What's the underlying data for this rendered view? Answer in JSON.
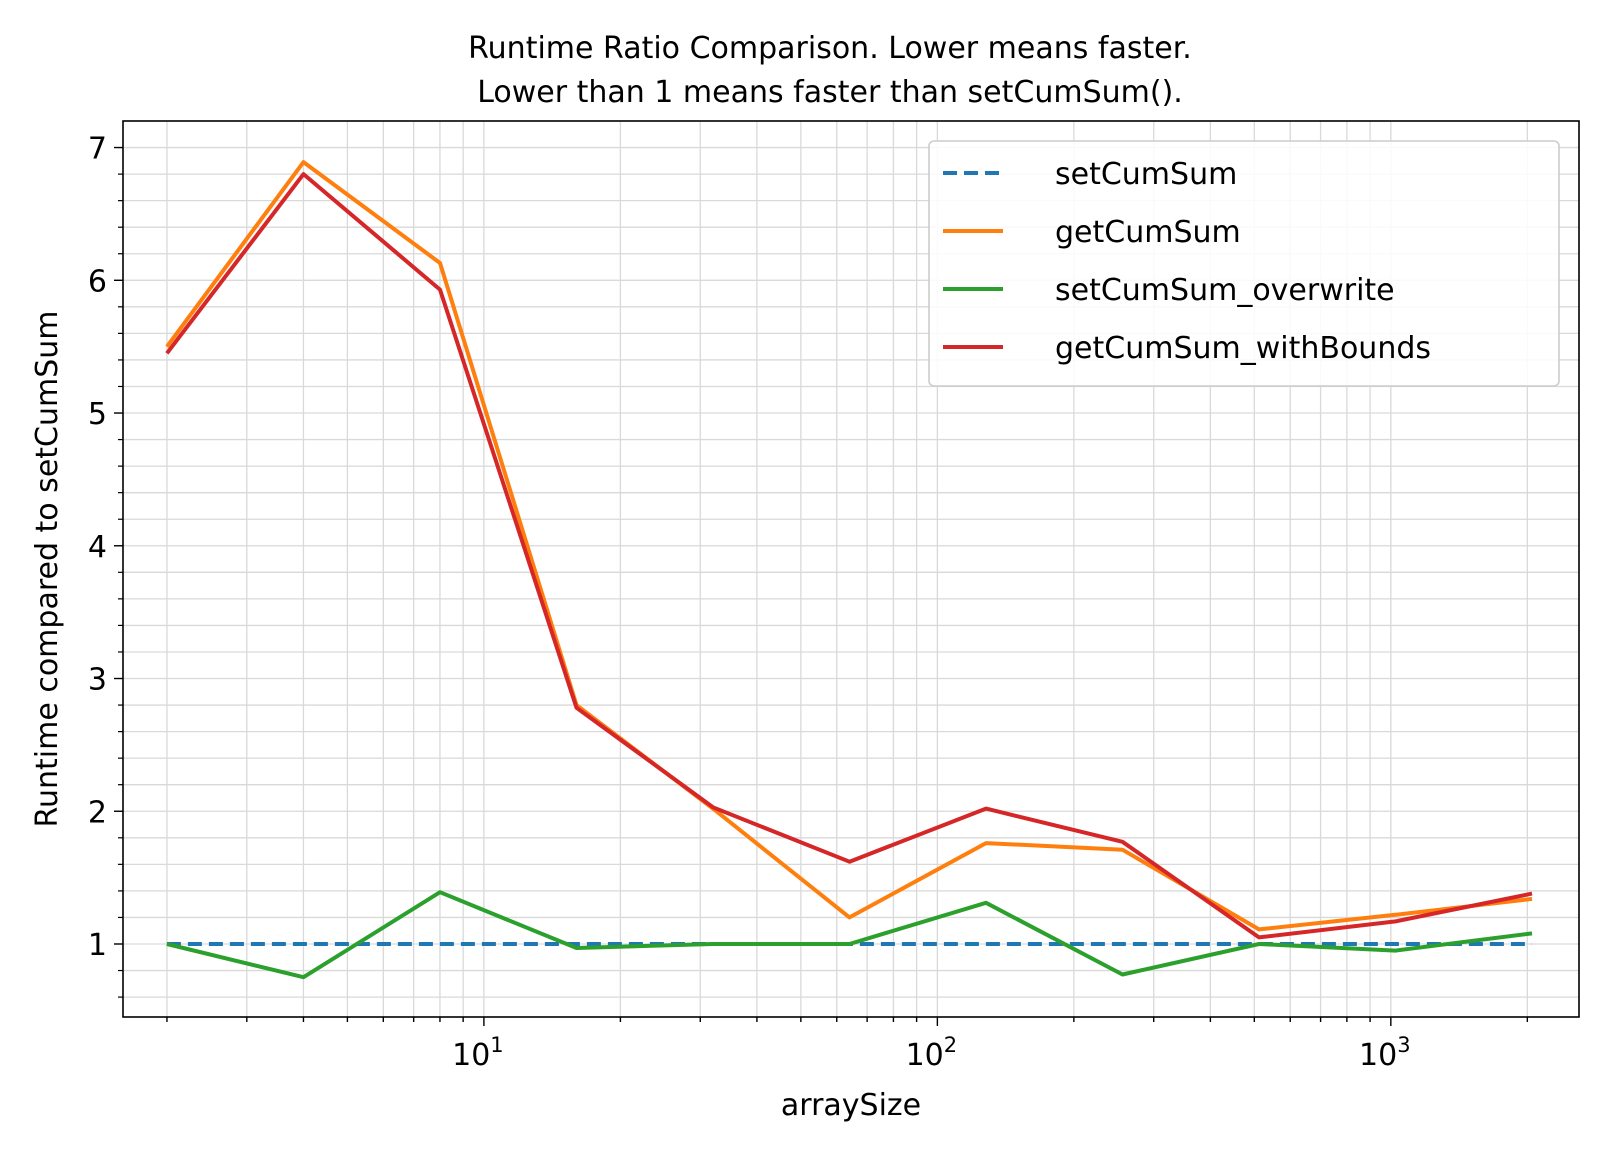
{
  "chart_data": {
    "type": "line",
    "title_line1": "Runtime Ratio Comparison. Lower means faster.",
    "title_line2": "Lower than 1 means faster than setCumSum().",
    "xlabel": "arraySize",
    "ylabel": "Runtime compared to setCumSum",
    "x_scale": "log",
    "xlim": [
      1.6,
      2600
    ],
    "ylim": [
      0.45,
      7.2
    ],
    "grid": "major and minor",
    "legend_position": "top-right",
    "x_ticks": [
      {
        "value": 10,
        "base": "10",
        "exp": "1"
      },
      {
        "value": 100,
        "base": "10",
        "exp": "2"
      },
      {
        "value": 1000,
        "base": "10",
        "exp": "3"
      }
    ],
    "y_ticks": [
      "1",
      "2",
      "3",
      "4",
      "5",
      "6",
      "7"
    ],
    "x": [
      2,
      4,
      8,
      16,
      32,
      64,
      128,
      256,
      512,
      1024,
      2048
    ],
    "series": [
      {
        "name": "setCumSum",
        "color": "#1f77b4",
        "dashed": true,
        "values": [
          1,
          1,
          1,
          1,
          1,
          1,
          1,
          1,
          1,
          1,
          1
        ]
      },
      {
        "name": "getCumSum",
        "color": "#ff7f0e",
        "dashed": false,
        "values": [
          5.5,
          6.89,
          6.13,
          2.8,
          2.02,
          1.2,
          1.76,
          1.71,
          1.11,
          1.22,
          1.34
        ]
      },
      {
        "name": "setCumSum_overwrite",
        "color": "#2ca02c",
        "dashed": false,
        "values": [
          1.0,
          0.75,
          1.39,
          0.97,
          1.0,
          1.0,
          1.31,
          0.77,
          1.0,
          0.95,
          1.08
        ]
      },
      {
        "name": "getCumSum_withBounds",
        "color": "#d62728",
        "dashed": false,
        "values": [
          5.45,
          6.8,
          5.93,
          2.78,
          2.03,
          1.62,
          2.02,
          1.77,
          1.05,
          1.17,
          1.38
        ]
      }
    ]
  }
}
